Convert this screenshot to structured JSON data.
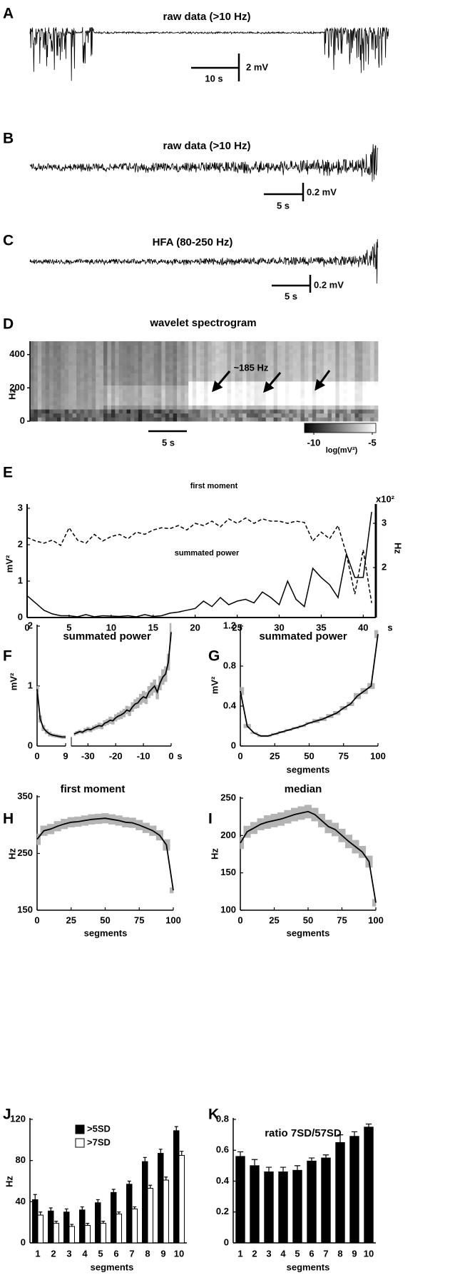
{
  "chart_data": [
    {
      "type": "trace",
      "panel": "A",
      "title": "raw data (>10 Hz)",
      "scalebar_x": "10 s",
      "scalebar_y": "2 mV"
    },
    {
      "type": "trace",
      "panel": "B",
      "title": "raw data (>10 Hz)",
      "scalebar_x": "5 s",
      "scalebar_y": "0.2 mV"
    },
    {
      "type": "trace",
      "panel": "C",
      "title": "HFA (80-250 Hz)",
      "scalebar_x": "5 s",
      "scalebar_y": "0.2 mV"
    },
    {
      "type": "heatmap",
      "panel": "D",
      "title": "wavelet spectrogram",
      "ylabel": "Hz",
      "ylim": [
        0,
        480
      ],
      "yticks": [
        0,
        200,
        400
      ],
      "annotation": "~185 Hz",
      "scalebar_x": "5 s",
      "colorbar": {
        "label": "log(mV²)",
        "lim": [
          -10,
          -5
        ],
        "ticks": [
          -10,
          -5
        ]
      }
    },
    {
      "type": "line",
      "panel": "E",
      "xlabel": "s",
      "ylabel": "mV²",
      "y2label": "Hz",
      "y2scale_label": "x10²",
      "xlim": [
        0,
        41.5
      ],
      "xticks": [
        0,
        5,
        10,
        15,
        20,
        25,
        30,
        35,
        40
      ],
      "ylim": [
        0,
        3
      ],
      "yticks": [
        0,
        1,
        2,
        3
      ],
      "y2lim": [
        0.87,
        3.34
      ],
      "y2ticks": [
        2,
        3
      ],
      "x": [
        0,
        1,
        2,
        3,
        4,
        5,
        6,
        7,
        8,
        9,
        10,
        11,
        12,
        13,
        14,
        15,
        16,
        17,
        18,
        19,
        20,
        21,
        22,
        23,
        24,
        25,
        26,
        27,
        28,
        29,
        30,
        31,
        32,
        33,
        34,
        35,
        36,
        37,
        38,
        39,
        40,
        41
      ],
      "series": [
        {
          "name": "first moment",
          "color": "#000000",
          "linestyle": "dashed",
          "axis": "y2",
          "values": [
            2.68,
            2.6,
            2.55,
            2.62,
            2.5,
            2.9,
            2.62,
            2.55,
            2.75,
            2.6,
            2.7,
            2.75,
            2.65,
            2.8,
            2.75,
            2.85,
            2.9,
            2.88,
            2.95,
            2.85,
            3.0,
            2.95,
            3.05,
            2.92,
            3.1,
            3.0,
            3.12,
            3.0,
            3.1,
            3.05,
            3.05,
            3.0,
            3.05,
            3.02,
            2.6,
            2.8,
            2.65,
            2.95,
            2.3,
            1.4,
            2.4,
            1.2
          ]
        },
        {
          "name": "summated power",
          "color": "#000000",
          "linestyle": "solid",
          "values": [
            0.6,
            0.4,
            0.2,
            0.1,
            0.05,
            0.05,
            0.02,
            0.08,
            0.02,
            0.05,
            0.04,
            0.03,
            0.05,
            0.02,
            0.08,
            0.03,
            0.05,
            0.12,
            0.15,
            0.2,
            0.25,
            0.45,
            0.3,
            0.55,
            0.35,
            0.45,
            0.5,
            0.4,
            0.7,
            0.55,
            0.35,
            1.0,
            0.5,
            0.3,
            1.35,
            1.1,
            0.9,
            0.55,
            1.75,
            1.1,
            1.1,
            2.9
          ]
        }
      ]
    },
    {
      "type": "band_line",
      "panel": "F",
      "title": "summated power",
      "ylabel": "mV²",
      "xlabel": "s",
      "ylim": [
        0,
        2
      ],
      "yticks": [
        0,
        1,
        2
      ],
      "color": "#000000",
      "band_color": "#b4b4b4",
      "segments": [
        {
          "xlim": [
            0,
            9
          ],
          "xticks": [
            0,
            9
          ],
          "x": [
            0,
            1,
            2,
            3,
            4,
            5,
            6,
            7,
            8,
            9
          ],
          "values": [
            0.95,
            0.45,
            0.3,
            0.24,
            0.2,
            0.18,
            0.17,
            0.16,
            0.15,
            0.15
          ],
          "errors": [
            0.05,
            0.06,
            0.05,
            0.04,
            0.04,
            0.03,
            0.03,
            0.03,
            0.03,
            0.03
          ]
        },
        {
          "xlim": [
            -36,
            0
          ],
          "xticks": [
            -30,
            -20,
            -10,
            0
          ],
          "x": [
            -35,
            -34,
            -33,
            -32,
            -31,
            -30,
            -29,
            -28,
            -27,
            -26,
            -25,
            -24,
            -23,
            -22,
            -21,
            -20,
            -19,
            -18,
            -17,
            -16,
            -15,
            -14,
            -13,
            -12,
            -11,
            -10,
            -9,
            -8,
            -7,
            -6,
            -5,
            -4,
            -3,
            -2,
            -1,
            0
          ],
          "values": [
            0.2,
            0.22,
            0.24,
            0.23,
            0.26,
            0.28,
            0.27,
            0.3,
            0.32,
            0.34,
            0.33,
            0.38,
            0.4,
            0.43,
            0.42,
            0.47,
            0.5,
            0.52,
            0.55,
            0.6,
            0.58,
            0.65,
            0.7,
            0.72,
            0.78,
            0.82,
            0.8,
            0.9,
            0.95,
            1.0,
            0.9,
            1.05,
            1.15,
            1.2,
            1.4,
            1.9
          ],
          "errors": [
            0.03,
            0.03,
            0.03,
            0.03,
            0.04,
            0.04,
            0.04,
            0.04,
            0.04,
            0.05,
            0.05,
            0.05,
            0.05,
            0.06,
            0.06,
            0.06,
            0.06,
            0.07,
            0.07,
            0.07,
            0.08,
            0.08,
            0.08,
            0.09,
            0.09,
            0.1,
            0.1,
            0.1,
            0.11,
            0.11,
            0.12,
            0.12,
            0.13,
            0.13,
            0.14,
            0.15
          ]
        }
      ]
    },
    {
      "type": "band_line",
      "panel": "G",
      "title": "summated power",
      "ylabel": "mV²",
      "xlabel": "segments",
      "color": "#000000",
      "band_color": "#b4b4b4",
      "xlim": [
        0,
        100
      ],
      "xticks": [
        0,
        25,
        50,
        75,
        100
      ],
      "ylim": [
        0,
        1.2
      ],
      "yticks": [
        0,
        0.4,
        0.8,
        1.2
      ],
      "x": [
        0,
        5,
        10,
        15,
        20,
        25,
        30,
        35,
        40,
        45,
        50,
        55,
        60,
        65,
        70,
        75,
        80,
        85,
        90,
        95,
        100
      ],
      "values": [
        0.55,
        0.2,
        0.13,
        0.1,
        0.1,
        0.12,
        0.14,
        0.16,
        0.18,
        0.2,
        0.23,
        0.25,
        0.27,
        0.3,
        0.33,
        0.38,
        0.42,
        0.5,
        0.55,
        0.6,
        1.12
      ],
      "errors": [
        0.04,
        0.02,
        0.01,
        0.01,
        0.01,
        0.01,
        0.01,
        0.01,
        0.01,
        0.01,
        0.01,
        0.02,
        0.02,
        0.02,
        0.02,
        0.02,
        0.02,
        0.03,
        0.03,
        0.03,
        0.04
      ]
    },
    {
      "type": "band_line",
      "panel": "H",
      "title": "first moment",
      "ylabel": "Hz",
      "xlabel": "segments",
      "color": "#000000",
      "band_color": "#b4b4b4",
      "xlim": [
        0,
        100
      ],
      "xticks": [
        0,
        25,
        50,
        75,
        100
      ],
      "ylim": [
        150,
        350
      ],
      "yticks": [
        150,
        250,
        350
      ],
      "x": [
        0,
        5,
        10,
        15,
        20,
        25,
        30,
        35,
        40,
        45,
        50,
        55,
        60,
        65,
        70,
        75,
        80,
        85,
        90,
        95,
        100
      ],
      "values": [
        275,
        290,
        293,
        298,
        302,
        305,
        306,
        308,
        310,
        311,
        312,
        310,
        308,
        305,
        304,
        300,
        295,
        290,
        282,
        265,
        185
      ],
      "errors": [
        10,
        9,
        9,
        9,
        9,
        9,
        9,
        9,
        9,
        9,
        9,
        9,
        9,
        9,
        9,
        9,
        9,
        9,
        9,
        10,
        5
      ]
    },
    {
      "type": "band_line",
      "panel": "I",
      "title": "median",
      "ylabel": "Hz",
      "xlabel": "segments",
      "color": "#000000",
      "band_color": "#b4b4b4",
      "xlim": [
        0,
        100
      ],
      "xticks": [
        0,
        25,
        50,
        75,
        100
      ],
      "ylim": [
        100,
        250
      ],
      "yticks": [
        100,
        150,
        200,
        250
      ],
      "x": [
        0,
        5,
        10,
        15,
        20,
        25,
        30,
        35,
        40,
        45,
        50,
        55,
        60,
        65,
        70,
        75,
        80,
        85,
        90,
        95,
        100
      ],
      "values": [
        190,
        205,
        210,
        215,
        218,
        220,
        222,
        225,
        228,
        230,
        232,
        228,
        220,
        212,
        208,
        200,
        192,
        185,
        178,
        165,
        110
      ],
      "errors": [
        8,
        8,
        8,
        8,
        9,
        9,
        9,
        9,
        9,
        9,
        9,
        9,
        9,
        9,
        9,
        9,
        9,
        9,
        8,
        8,
        5
      ]
    },
    {
      "type": "bar",
      "panel": "J",
      "ylabel": "Hz",
      "xlabel": "segments",
      "ylim": [
        0,
        120
      ],
      "yticks": [
        0,
        40,
        80,
        120
      ],
      "categories": [
        "1",
        "2",
        "3",
        "4",
        "5",
        "6",
        "7",
        "8",
        "9",
        "10"
      ],
      "series": [
        {
          "name": ">5SD",
          "color": "#000000",
          "values": [
            42,
            31,
            30,
            32,
            39,
            49,
            57,
            79,
            87,
            109
          ],
          "errors": [
            5,
            3,
            3,
            3,
            3,
            3,
            3,
            4,
            4,
            4
          ]
        },
        {
          "name": ">7SD",
          "color": "#ffffff",
          "values": [
            27,
            19,
            16,
            17,
            19,
            28,
            33,
            53,
            61,
            85
          ],
          "errors": [
            3,
            2,
            2,
            2,
            2,
            2,
            2,
            3,
            3,
            4
          ]
        }
      ]
    },
    {
      "type": "bar",
      "panel": "K",
      "title": "ratio 7SD/57SD",
      "xlabel": "segments",
      "ylim": [
        0,
        0.8
      ],
      "yticks": [
        0,
        0.2,
        0.4,
        0.6,
        0.8
      ],
      "categories": [
        "1",
        "2",
        "3",
        "4",
        "5",
        "6",
        "7",
        "8",
        "9",
        "10"
      ],
      "series": [
        {
          "color": "#000000",
          "values": [
            0.56,
            0.5,
            0.46,
            0.46,
            0.47,
            0.53,
            0.55,
            0.65,
            0.69,
            0.75
          ],
          "errors": [
            0.03,
            0.04,
            0.03,
            0.03,
            0.03,
            0.02,
            0.02,
            0.05,
            0.03,
            0.02
          ]
        }
      ]
    }
  ]
}
